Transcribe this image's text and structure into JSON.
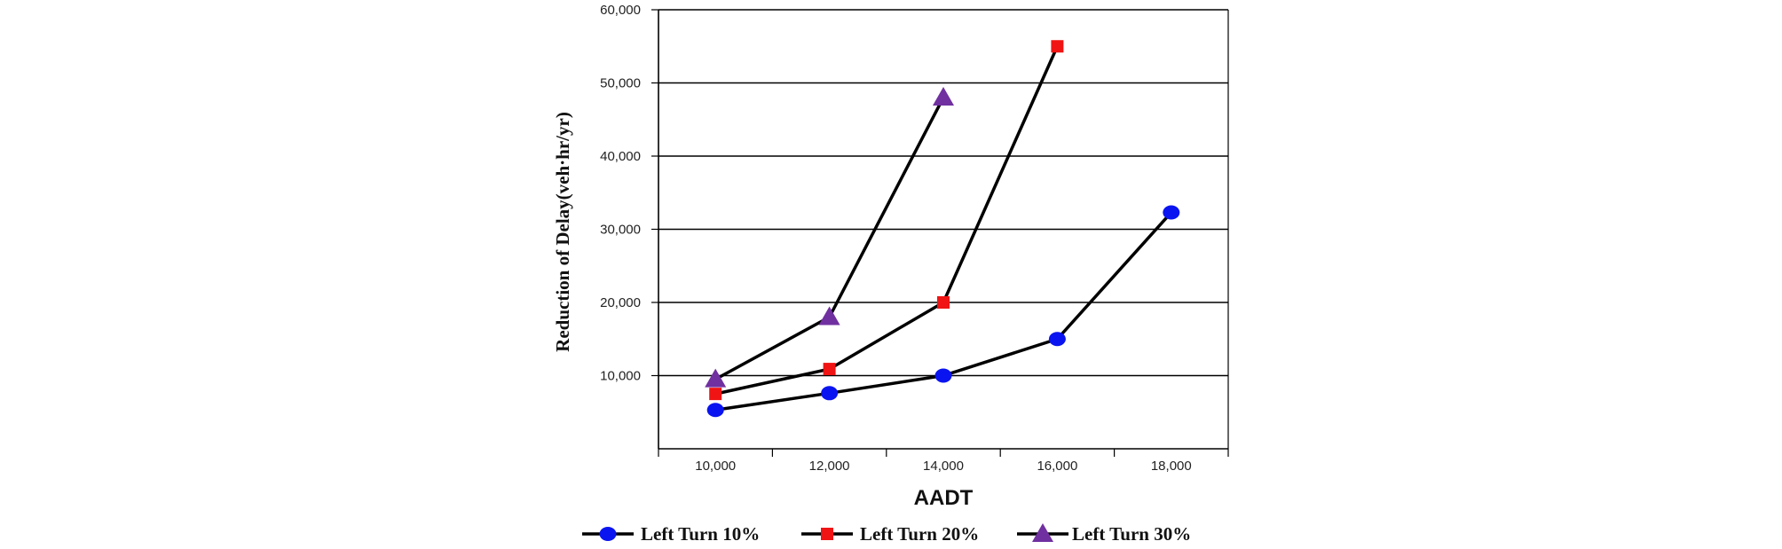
{
  "chart_data": {
    "type": "line",
    "xlabel": "AADT",
    "ylabel": "Reduction of Delay(veh·hr/yr)",
    "xlim": [
      9000,
      19000
    ],
    "ylim": [
      0,
      60000
    ],
    "x_ticks": [
      10000,
      12000,
      14000,
      16000,
      18000
    ],
    "x_tick_labels": [
      "10,000",
      "12,000",
      "14,000",
      "16,000",
      "18,000"
    ],
    "y_ticks": [
      10000,
      20000,
      30000,
      40000,
      50000,
      60000
    ],
    "y_tick_labels": [
      "10,000",
      "20,000",
      "30,000",
      "40,000",
      "50,000",
      "60,000"
    ],
    "grid": "horizontal",
    "legend_position": "bottom",
    "series": [
      {
        "name": "Left Turn 10%",
        "marker": "circle",
        "color": "#0a14f0",
        "x": [
          10000,
          12000,
          14000,
          16000,
          18000
        ],
        "y": [
          5300,
          7600,
          10000,
          15000,
          32300
        ]
      },
      {
        "name": "Left Turn 20%",
        "marker": "square",
        "color": "#f01414",
        "x": [
          10000,
          12000,
          14000,
          16000
        ],
        "y": [
          7500,
          10900,
          20000,
          55000
        ]
      },
      {
        "name": "Left Turn 30%",
        "marker": "triangle",
        "color": "#7030a0",
        "x": [
          10000,
          12000,
          14000
        ],
        "y": [
          9500,
          18000,
          48000
        ]
      }
    ],
    "line_color": "#000000"
  }
}
